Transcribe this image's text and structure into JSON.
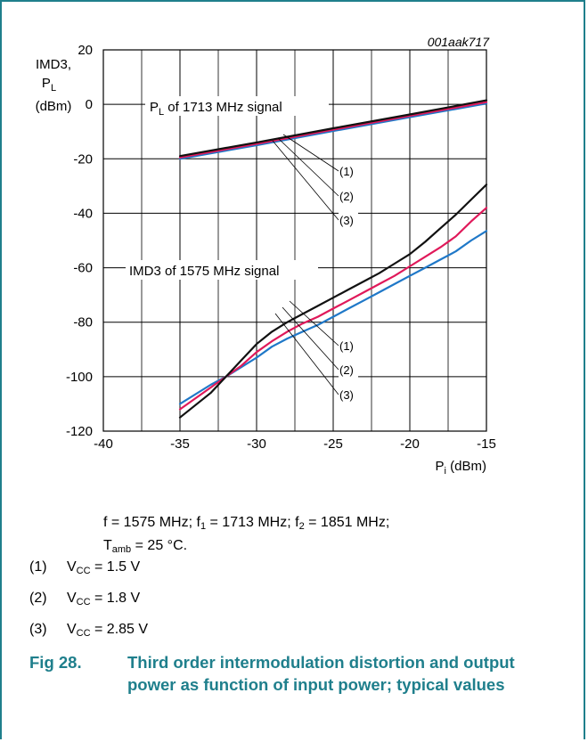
{
  "figure": {
    "id_tag": "001aak717",
    "caption_number": "Fig 28.",
    "caption_text": "Third order intermodulation distortion and output power as function of input power; typical values"
  },
  "conditions": {
    "line1": {
      "f": "f = 1575 MHz; f",
      "f1_sub": "1",
      "f1_val": " = 1713 MHz; f",
      "f2_sub": "2",
      "f2_val": " = 1851 MHz;"
    },
    "line2": {
      "t": "T",
      "t_sub": "amb",
      "t_val": " = 25 °C."
    }
  },
  "legend": [
    {
      "num": "(1)",
      "v": "V",
      "sub": "CC",
      "val": " = 1.5 V"
    },
    {
      "num": "(2)",
      "v": "V",
      "sub": "CC",
      "val": " = 1.8 V"
    },
    {
      "num": "(3)",
      "v": "V",
      "sub": "CC",
      "val": " = 2.85 V"
    }
  ],
  "colors": {
    "series1": "#111111",
    "series2": "#e0195a",
    "series3": "#1f78c8",
    "grid": "#000000",
    "frame": "#1f7f8c"
  },
  "chart_data": {
    "type": "line",
    "ylabel": [
      "IMD3,",
      "P",
      "L",
      "(dBm)"
    ],
    "xlabel": {
      "main": "P",
      "sub": "i",
      "unit": " (dBm)"
    },
    "xlim": [
      -40,
      -15
    ],
    "ylim": [
      -120,
      20
    ],
    "x_ticks": [
      -40,
      -35,
      -30,
      -25,
      -20,
      -15
    ],
    "y_ticks": [
      -120,
      -100,
      -80,
      -60,
      -40,
      -20,
      0,
      20
    ],
    "annotations": {
      "pl_label": {
        "main": "P",
        "sub": "L",
        "rest": " of 1713 MHz signal"
      },
      "imd3_label": "IMD3 of 1575 MHz signal",
      "callouts": [
        "(1)",
        "(2)",
        "(3)"
      ]
    },
    "series": [
      {
        "group": "PL",
        "ref": "(1)",
        "color_key": "series1",
        "points": [
          [
            -35,
            -19
          ],
          [
            -30,
            -14
          ],
          [
            -25,
            -8.8
          ],
          [
            -20,
            -3.7
          ],
          [
            -15,
            1.5
          ]
        ]
      },
      {
        "group": "PL",
        "ref": "(2)",
        "color_key": "series2",
        "points": [
          [
            -35,
            -19.5
          ],
          [
            -30,
            -14.5
          ],
          [
            -25,
            -9.3
          ],
          [
            -20,
            -4.2
          ],
          [
            -15,
            0.8
          ]
        ]
      },
      {
        "group": "PL",
        "ref": "(3)",
        "color_key": "series3",
        "points": [
          [
            -35,
            -20
          ],
          [
            -30,
            -15
          ],
          [
            -25,
            -9.8
          ],
          [
            -20,
            -4.7
          ],
          [
            -15,
            0.3
          ]
        ]
      },
      {
        "group": "IMD3",
        "ref": "(1)",
        "color_key": "series1",
        "points": [
          [
            -35,
            -115
          ],
          [
            -33,
            -106
          ],
          [
            -32,
            -100
          ],
          [
            -31,
            -94
          ],
          [
            -30,
            -88
          ],
          [
            -29,
            -83.5
          ],
          [
            -28,
            -80
          ],
          [
            -27,
            -77
          ],
          [
            -26,
            -74
          ],
          [
            -25,
            -71
          ],
          [
            -24,
            -68
          ],
          [
            -23,
            -65
          ],
          [
            -22,
            -62
          ],
          [
            -21,
            -58.5
          ],
          [
            -20,
            -55
          ],
          [
            -19,
            -50.5
          ],
          [
            -18,
            -45.5
          ],
          [
            -17,
            -40.5
          ],
          [
            -16,
            -35
          ],
          [
            -15,
            -29.5
          ]
        ]
      },
      {
        "group": "IMD3",
        "ref": "(2)",
        "color_key": "series2",
        "points": [
          [
            -35,
            -112
          ],
          [
            -33,
            -104
          ],
          [
            -32,
            -100
          ],
          [
            -31,
            -96
          ],
          [
            -30,
            -91
          ],
          [
            -29,
            -87
          ],
          [
            -28,
            -83.5
          ],
          [
            -27,
            -80.5
          ],
          [
            -26,
            -78
          ],
          [
            -25,
            -75
          ],
          [
            -24,
            -72
          ],
          [
            -23,
            -69
          ],
          [
            -22,
            -66
          ],
          [
            -21,
            -63
          ],
          [
            -20,
            -59.5
          ],
          [
            -19,
            -56
          ],
          [
            -18,
            -52.5
          ],
          [
            -17,
            -48.5
          ],
          [
            -16,
            -43
          ],
          [
            -15,
            -38
          ]
        ]
      },
      {
        "group": "IMD3",
        "ref": "(3)",
        "color_key": "series3",
        "points": [
          [
            -35,
            -110
          ],
          [
            -33,
            -103
          ],
          [
            -32,
            -100
          ],
          [
            -31,
            -96.5
          ],
          [
            -30,
            -93
          ],
          [
            -29,
            -89
          ],
          [
            -28,
            -86
          ],
          [
            -27,
            -83.5
          ],
          [
            -26,
            -81
          ],
          [
            -25,
            -78
          ],
          [
            -24,
            -75
          ],
          [
            -23,
            -72
          ],
          [
            -22,
            -69
          ],
          [
            -21,
            -66
          ],
          [
            -20,
            -63
          ],
          [
            -19,
            -60
          ],
          [
            -18,
            -57
          ],
          [
            -17,
            -54
          ],
          [
            -16,
            -50
          ],
          [
            -15,
            -46.5
          ]
        ]
      }
    ]
  }
}
